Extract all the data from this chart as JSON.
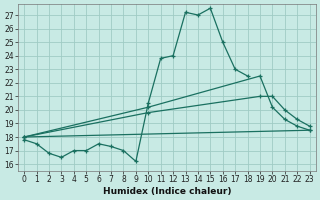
{
  "xlabel": "Humidex (Indice chaleur)",
  "background_color": "#c8eae4",
  "grid_color": "#a0ccc4",
  "line_color": "#1a7060",
  "xlim": [
    -0.5,
    23.5
  ],
  "ylim": [
    15.5,
    27.8
  ],
  "yticks": [
    16,
    17,
    18,
    19,
    20,
    21,
    22,
    23,
    24,
    25,
    26,
    27
  ],
  "xticks": [
    0,
    1,
    2,
    3,
    4,
    5,
    6,
    7,
    8,
    9,
    10,
    11,
    12,
    13,
    14,
    15,
    16,
    17,
    18,
    19,
    20,
    21,
    22,
    23
  ],
  "s1x": [
    0,
    1,
    2,
    3,
    4,
    5,
    6,
    7,
    8,
    9,
    10,
    11,
    12,
    13,
    14,
    15,
    16,
    17,
    18
  ],
  "s1y": [
    17.8,
    17.5,
    16.8,
    16.5,
    17.0,
    17.0,
    17.5,
    17.3,
    17.0,
    16.2,
    20.5,
    23.8,
    24.0,
    27.2,
    27.0,
    27.5,
    25.0,
    23.0,
    22.5
  ],
  "s2x": [
    0,
    10,
    19,
    20,
    21,
    22,
    23
  ],
  "s2y": [
    18.0,
    20.2,
    22.5,
    20.2,
    19.3,
    18.8,
    18.5
  ],
  "s3x": [
    0,
    10,
    19,
    20,
    21,
    22,
    23
  ],
  "s3y": [
    18.0,
    19.8,
    21.0,
    21.0,
    20.0,
    19.3,
    18.8
  ],
  "s4x": [
    0,
    23
  ],
  "s4y": [
    18.0,
    18.5
  ]
}
